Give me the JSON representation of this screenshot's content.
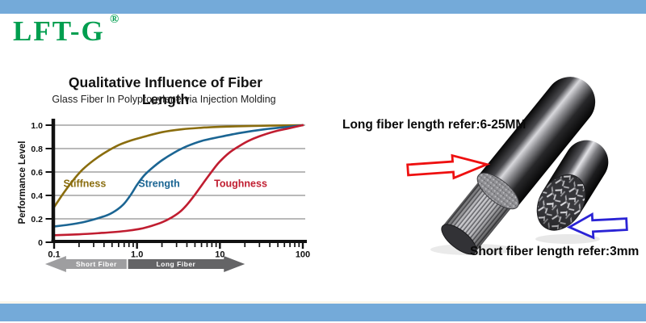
{
  "page": {
    "bar_color": "#74aad9",
    "background": "#ffffff"
  },
  "logo": {
    "text": "LFT-G",
    "registered": "®",
    "color": "#009e4f"
  },
  "chart": {
    "title": "Qualitative Influence of Fiber Length",
    "subtitle": "Glass Fiber In Polypropylene via Injection Molding",
    "y_axis_label": "Performance Level"
  },
  "chart_data": {
    "type": "line",
    "x_scale": "log",
    "x_range": [
      0.1,
      100
    ],
    "y_range": [
      0,
      1.0
    ],
    "grid": true,
    "grid_color": "#8f8f8f",
    "axis_color": "#111111",
    "x_ticks": [
      {
        "v": 0.1,
        "label": "0.1"
      },
      {
        "v": 1,
        "label": "1.0"
      },
      {
        "v": 10,
        "label": "10"
      },
      {
        "v": 100,
        "label": "100"
      }
    ],
    "y_ticks": [
      {
        "v": 0,
        "label": "0"
      },
      {
        "v": 0.2,
        "label": "0.2"
      },
      {
        "v": 0.4,
        "label": "0.4"
      },
      {
        "v": 0.6,
        "label": "0.6"
      },
      {
        "v": 0.8,
        "label": "0.8"
      },
      {
        "v": 1.0,
        "label": "1.0"
      }
    ],
    "series": [
      {
        "name": "Stiffness",
        "color": "#8a6d0e",
        "label_pos": {
          "x": 0.234,
          "y": 0.5
        },
        "points": [
          [
            0.1,
            0.3
          ],
          [
            0.13,
            0.42
          ],
          [
            0.17,
            0.53
          ],
          [
            0.22,
            0.62
          ],
          [
            0.3,
            0.7
          ],
          [
            0.42,
            0.77
          ],
          [
            0.6,
            0.83
          ],
          [
            0.85,
            0.87
          ],
          [
            1.2,
            0.9
          ],
          [
            2,
            0.94
          ],
          [
            3.5,
            0.965
          ],
          [
            6,
            0.978
          ],
          [
            10,
            0.986
          ],
          [
            20,
            0.992
          ],
          [
            40,
            0.996
          ],
          [
            100,
            1.0
          ]
        ]
      },
      {
        "name": "Strength",
        "color": "#1b6593",
        "label_pos": {
          "x": 1.85,
          "y": 0.5
        },
        "points": [
          [
            0.1,
            0.135
          ],
          [
            0.15,
            0.15
          ],
          [
            0.22,
            0.17
          ],
          [
            0.32,
            0.2
          ],
          [
            0.45,
            0.235
          ],
          [
            0.58,
            0.28
          ],
          [
            0.7,
            0.33
          ],
          [
            0.85,
            0.41
          ],
          [
            1.0,
            0.49
          ],
          [
            1.2,
            0.565
          ],
          [
            1.5,
            0.63
          ],
          [
            2,
            0.7
          ],
          [
            2.8,
            0.765
          ],
          [
            4,
            0.82
          ],
          [
            6,
            0.865
          ],
          [
            10,
            0.9
          ],
          [
            18,
            0.935
          ],
          [
            35,
            0.965
          ],
          [
            65,
            0.985
          ],
          [
            100,
            1.0
          ]
        ]
      },
      {
        "name": "Toughness",
        "color": "#c01d30",
        "label_pos": {
          "x": 17.8,
          "y": 0.5
        },
        "points": [
          [
            0.1,
            0.06
          ],
          [
            0.2,
            0.068
          ],
          [
            0.35,
            0.078
          ],
          [
            0.55,
            0.088
          ],
          [
            0.8,
            0.1
          ],
          [
            1.1,
            0.115
          ],
          [
            1.5,
            0.14
          ],
          [
            2,
            0.17
          ],
          [
            2.6,
            0.21
          ],
          [
            3.3,
            0.26
          ],
          [
            4,
            0.32
          ],
          [
            4.8,
            0.39
          ],
          [
            5.8,
            0.47
          ],
          [
            7,
            0.55
          ],
          [
            8.5,
            0.63
          ],
          [
            10,
            0.69
          ],
          [
            13,
            0.765
          ],
          [
            17,
            0.82
          ],
          [
            22,
            0.865
          ],
          [
            30,
            0.905
          ],
          [
            45,
            0.945
          ],
          [
            70,
            0.975
          ],
          [
            100,
            1.0
          ]
        ]
      }
    ],
    "range_arrows": [
      {
        "label": "Short Fiber",
        "from": 0.078,
        "to": 0.75,
        "dir": "left",
        "color": "#9e9ea0",
        "text_color": "#ffffff"
      },
      {
        "label": "Long  Fiber",
        "from": 0.78,
        "to": 20,
        "dir": "right",
        "color": "#646466",
        "text_color": "#ffffff"
      }
    ]
  },
  "illustration": {
    "long_label": "Long fiber length refer:6-25MM",
    "short_label": "Short fiber length refer:3mm",
    "long_arrow_color": "#ee1010",
    "short_arrow_color": "#2a23d5"
  }
}
